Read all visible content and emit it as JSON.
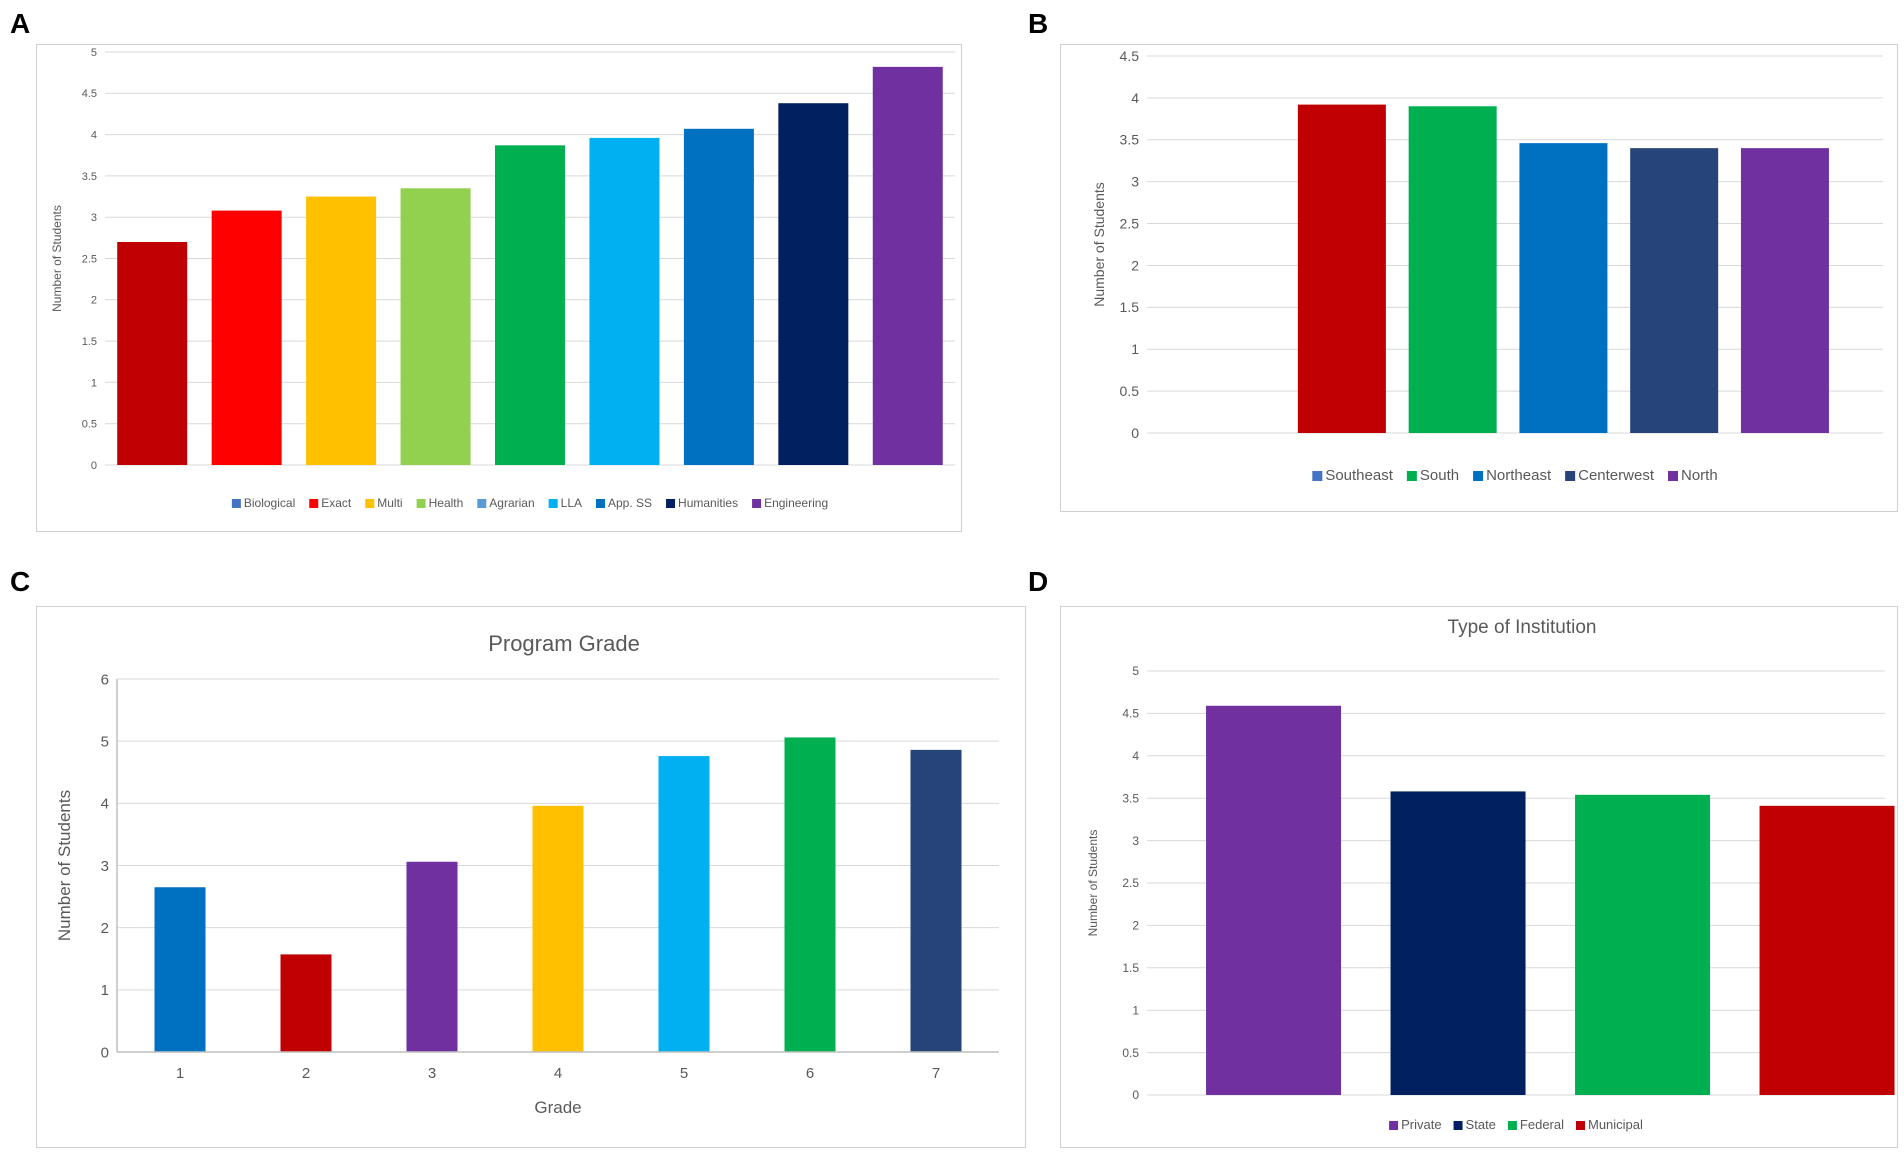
{
  "panels": [
    {
      "letter": "A"
    },
    {
      "letter": "B"
    },
    {
      "letter": "C"
    },
    {
      "letter": "D"
    }
  ],
  "chart_data": [
    {
      "type": "bar",
      "title": "",
      "xlabel": "",
      "ylabel": "Number of Students",
      "ylim": [
        0,
        5
      ],
      "yticks": [
        "0",
        "0.5",
        "1",
        "1.5",
        "2",
        "2.5",
        "3",
        "3.5",
        "4",
        "4.5",
        "5"
      ],
      "categories": [
        "Biological",
        "Exact",
        "Multi",
        "Health",
        "Agrarian",
        "LLA",
        "App. SS",
        "Humanities",
        "Engineering"
      ],
      "values": [
        2.7,
        3.08,
        3.25,
        3.35,
        3.87,
        3.96,
        4.07,
        4.38,
        4.82
      ],
      "bar_colors": [
        "#c00000",
        "#ff0000",
        "#ffc000",
        "#92d050",
        "#00b050",
        "#00b0f0",
        "#0070c0",
        "#002060",
        "#7030a0"
      ],
      "legend": [
        "Biological",
        "Exact",
        "Multi",
        "Health",
        "Agrarian",
        "LLA",
        "App. SS",
        "Humanities",
        "Engineering"
      ],
      "legend_colors": [
        "#4472c4",
        "#ff0000",
        "#ffc000",
        "#92d050",
        "#5b9bd5",
        "#00b0f0",
        "#0070c0",
        "#002060",
        "#7030a0"
      ],
      "legend_position": "bottom",
      "grid": true
    },
    {
      "type": "bar",
      "title": "",
      "xlabel": "",
      "ylabel": "Number of Students",
      "ylim": [
        0,
        4.5
      ],
      "yticks": [
        "0",
        "0.5",
        "1",
        "1.5",
        "2",
        "2.5",
        "3",
        "3.5",
        "4",
        "4.5"
      ],
      "categories": [
        "Southeast",
        "South",
        "Northeast",
        "Centerwest",
        "North"
      ],
      "values": [
        3.92,
        3.9,
        3.46,
        3.4,
        3.4
      ],
      "bar_colors": [
        "#c00000",
        "#00b050",
        "#0070c0",
        "#264478",
        "#7030a0"
      ],
      "legend": [
        "Southeast",
        "South",
        "Northeast",
        "Centerwest",
        "North"
      ],
      "legend_colors": [
        "#4472c4",
        "#00b050",
        "#0070c0",
        "#264478",
        "#7030a0"
      ],
      "legend_position": "bottom",
      "grid": true
    },
    {
      "type": "bar",
      "title": "Program Grade",
      "xlabel": "Grade",
      "ylabel": "Number of Students",
      "ylim": [
        0,
        6
      ],
      "yticks": [
        "0",
        "1",
        "2",
        "3",
        "4",
        "5",
        "6"
      ],
      "categories": [
        "1",
        "2",
        "3",
        "4",
        "5",
        "6",
        "7"
      ],
      "values": [
        2.65,
        1.57,
        3.06,
        3.96,
        4.76,
        5.06,
        4.86
      ],
      "bar_colors": [
        "#0070c0",
        "#c00000",
        "#7030a0",
        "#ffc000",
        "#00b0f0",
        "#00b050",
        "#264478"
      ],
      "legend": [],
      "legend_colors": [],
      "legend_position": "none",
      "grid": true
    },
    {
      "type": "bar",
      "title": "Type of Institution",
      "xlabel": "",
      "ylabel": "Number of Students",
      "ylim": [
        0,
        5
      ],
      "yticks": [
        "0",
        "0.5",
        "1",
        "1.5",
        "2",
        "2.5",
        "3",
        "3.5",
        "4",
        "4.5",
        "5"
      ],
      "categories": [
        "Private",
        "State",
        "Federal",
        "Municipal"
      ],
      "values": [
        4.59,
        3.58,
        3.54,
        3.41
      ],
      "bar_colors": [
        "#7030a0",
        "#002060",
        "#00b050",
        "#c00000"
      ],
      "legend": [
        "Private",
        "State",
        "Federal",
        "Municipal"
      ],
      "legend_colors": [
        "#7030a0",
        "#002060",
        "#00b050",
        "#c00000"
      ],
      "legend_position": "bottom",
      "grid": true
    }
  ]
}
